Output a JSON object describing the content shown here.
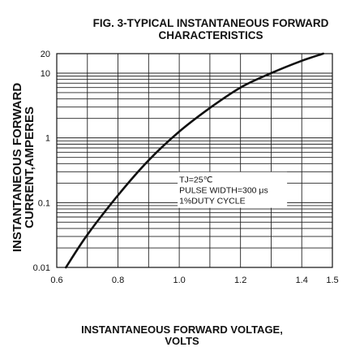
{
  "chart_data": {
    "type": "line",
    "title_line1": "FIG. 3-TYPICAL INSTANTANEOUS FORWARD",
    "title_line2": "CHARACTERISTICS",
    "ylabel_line1": "INSTANTANEOUS FORWARD",
    "ylabel_line2": "CURRENT,AMPERES",
    "xlabel_line1": "INSTANTANEOUS FORWARD VOLTAGE,",
    "xlabel_line2": "VOLTS",
    "xlim": [
      0.6,
      1.5
    ],
    "ylim": [
      0.01,
      20
    ],
    "yscale": "log",
    "grid": true,
    "x_ticks": [
      "0.6",
      "0.8",
      "1.0",
      "1.2",
      "1.4",
      "1.5"
    ],
    "x_tick_values": [
      0.6,
      0.8,
      1.0,
      1.2,
      1.4,
      1.5
    ],
    "y_ticks": [
      "20",
      "10",
      "1",
      "0.1",
      "0.01"
    ],
    "y_tick_values": [
      20,
      10,
      1,
      0.1,
      0.01
    ],
    "annotation": [
      "TJ=25℃",
      "PULSE WIDTH=300 μs",
      "1%DUTY CYCLE"
    ],
    "series": [
      {
        "x": [
          0.63,
          0.7,
          0.8,
          0.9,
          1.0,
          1.1,
          1.2,
          1.3,
          1.4,
          1.47
        ],
        "y": [
          0.01,
          0.032,
          0.13,
          0.45,
          1.25,
          2.9,
          6.0,
          10.0,
          15.5,
          20.0
        ]
      }
    ]
  }
}
